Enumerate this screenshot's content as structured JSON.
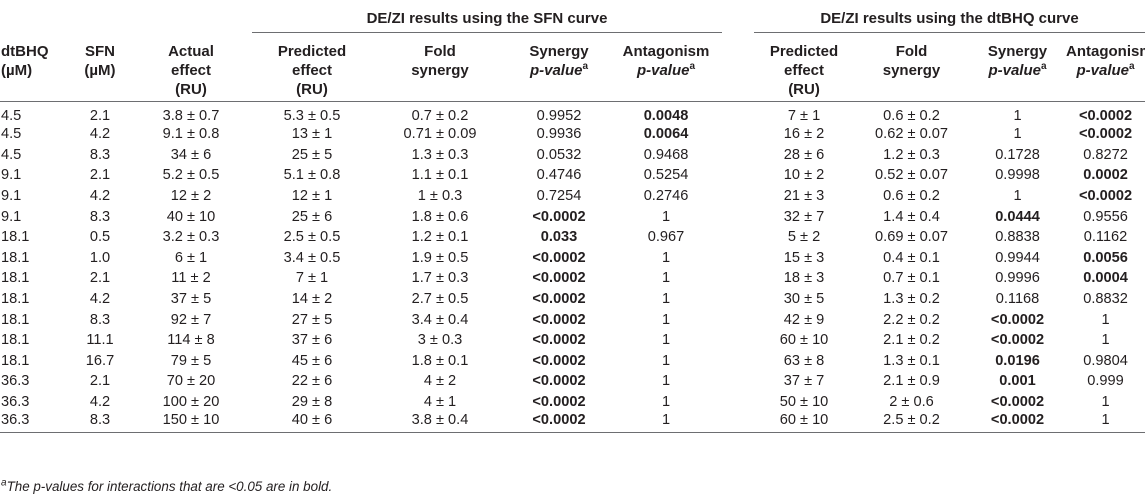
{
  "group_headers": {
    "sfn": "DE/ZI results using the SFN curve",
    "dtbhq": "DE/ZI results using the dtBHQ curve"
  },
  "col_headers": {
    "dtbhq": [
      "dtBHQ",
      "(µM)"
    ],
    "sfn": [
      "SFN",
      "(µM)"
    ],
    "actual": [
      "Actual",
      "effect",
      "(RU)"
    ],
    "predicted": [
      "Predicted",
      "effect",
      "(RU)"
    ],
    "fold": [
      "Fold",
      "synergy"
    ],
    "synergy": [
      "Synergy",
      "p-value",
      "a"
    ],
    "antagonism": [
      "Antagonism",
      "p-value",
      "a"
    ]
  },
  "rows": [
    {
      "dtbhq": "4.5",
      "sfn": "2.1",
      "actual": "3.8 ± 0.7",
      "pred1": "5.3 ± 0.5",
      "fold1": "0.7 ± 0.2",
      "syn1": "0.9952",
      "ant1": "0.0048",
      "pred2": "7 ± 1",
      "fold2": "0.6 ± 0.2",
      "syn2": "1",
      "ant2": "<0.0002",
      "bold": [
        "ant1",
        "ant2"
      ]
    },
    {
      "dtbhq": "4.5",
      "sfn": "4.2",
      "actual": "9.1 ± 0.8",
      "pred1": "13 ± 1",
      "fold1": "0.71 ± 0.09",
      "syn1": "0.9936",
      "ant1": "0.0064",
      "pred2": "16 ± 2",
      "fold2": "0.62 ± 0.07",
      "syn2": "1",
      "ant2": "<0.0002",
      "bold": [
        "ant1",
        "ant2"
      ]
    },
    {
      "dtbhq": "4.5",
      "sfn": "8.3",
      "actual": "34 ± 6",
      "pred1": "25 ± 5",
      "fold1": "1.3 ± 0.3",
      "syn1": "0.0532",
      "ant1": "0.9468",
      "pred2": "28 ± 6",
      "fold2": "1.2 ± 0.3",
      "syn2": "0.1728",
      "ant2": "0.8272",
      "bold": []
    },
    {
      "dtbhq": "9.1",
      "sfn": "2.1",
      "actual": "5.2 ± 0.5",
      "pred1": "5.1 ± 0.8",
      "fold1": "1.1 ± 0.1",
      "syn1": "0.4746",
      "ant1": "0.5254",
      "pred2": "10 ± 2",
      "fold2": "0.52 ± 0.07",
      "syn2": "0.9998",
      "ant2": "0.0002",
      "bold": [
        "ant2"
      ]
    },
    {
      "dtbhq": "9.1",
      "sfn": "4.2",
      "actual": "12 ± 2",
      "pred1": "12 ± 1",
      "fold1": "1 ± 0.3",
      "syn1": "0.7254",
      "ant1": "0.2746",
      "pred2": "21 ± 3",
      "fold2": "0.6 ± 0.2",
      "syn2": "1",
      "ant2": "<0.0002",
      "bold": [
        "ant2"
      ]
    },
    {
      "dtbhq": "9.1",
      "sfn": "8.3",
      "actual": "40 ± 10",
      "pred1": "25 ± 6",
      "fold1": "1.8 ± 0.6",
      "syn1": "<0.0002",
      "ant1": "1",
      "pred2": "32 ± 7",
      "fold2": "1.4 ± 0.4",
      "syn2": "0.0444",
      "ant2": "0.9556",
      "bold": [
        "syn1",
        "syn2"
      ]
    },
    {
      "dtbhq": "18.1",
      "sfn": "0.5",
      "actual": "3.2 ± 0.3",
      "pred1": "2.5 ± 0.5",
      "fold1": "1.2 ± 0.1",
      "syn1": "0.033",
      "ant1": "0.967",
      "pred2": "5 ± 2",
      "fold2": "0.69 ± 0.07",
      "syn2": "0.8838",
      "ant2": "0.1162",
      "bold": [
        "syn1"
      ]
    },
    {
      "dtbhq": "18.1",
      "sfn": "1.0",
      "actual": "6 ± 1",
      "pred1": "3.4 ± 0.5",
      "fold1": "1.9 ± 0.5",
      "syn1": "<0.0002",
      "ant1": "1",
      "pred2": "15 ± 3",
      "fold2": "0.4 ± 0.1",
      "syn2": "0.9944",
      "ant2": "0.0056",
      "bold": [
        "syn1",
        "ant2"
      ]
    },
    {
      "dtbhq": "18.1",
      "sfn": "2.1",
      "actual": "11 ± 2",
      "pred1": "7 ± 1",
      "fold1": "1.7 ± 0.3",
      "syn1": "<0.0002",
      "ant1": "1",
      "pred2": "18 ± 3",
      "fold2": "0.7 ± 0.1",
      "syn2": "0.9996",
      "ant2": "0.0004",
      "bold": [
        "syn1",
        "ant2"
      ]
    },
    {
      "dtbhq": "18.1",
      "sfn": "4.2",
      "actual": "37 ± 5",
      "pred1": "14 ± 2",
      "fold1": "2.7 ± 0.5",
      "syn1": "<0.0002",
      "ant1": "1",
      "pred2": "30 ± 5",
      "fold2": "1.3 ± 0.2",
      "syn2": "0.1168",
      "ant2": "0.8832",
      "bold": [
        "syn1"
      ]
    },
    {
      "dtbhq": "18.1",
      "sfn": "8.3",
      "actual": "92 ± 7",
      "pred1": "27 ± 5",
      "fold1": "3.4 ± 0.4",
      "syn1": "<0.0002",
      "ant1": "1",
      "pred2": "42 ± 9",
      "fold2": "2.2 ± 0.2",
      "syn2": "<0.0002",
      "ant2": "1",
      "bold": [
        "syn1",
        "syn2"
      ]
    },
    {
      "dtbhq": "18.1",
      "sfn": "11.1",
      "actual": "114 ± 8",
      "pred1": "37 ± 6",
      "fold1": "3 ± 0.3",
      "syn1": "<0.0002",
      "ant1": "1",
      "pred2": "60 ± 10",
      "fold2": "2.1 ± 0.2",
      "syn2": "<0.0002",
      "ant2": "1",
      "bold": [
        "syn1",
        "syn2"
      ]
    },
    {
      "dtbhq": "18.1",
      "sfn": "16.7",
      "actual": "79 ± 5",
      "pred1": "45 ± 6",
      "fold1": "1.8 ± 0.1",
      "syn1": "<0.0002",
      "ant1": "1",
      "pred2": "63 ± 8",
      "fold2": "1.3 ± 0.1",
      "syn2": "0.0196",
      "ant2": "0.9804",
      "bold": [
        "syn1",
        "syn2"
      ]
    },
    {
      "dtbhq": "36.3",
      "sfn": "2.1",
      "actual": "70 ± 20",
      "pred1": "22 ± 6",
      "fold1": "4 ± 2",
      "syn1": "<0.0002",
      "ant1": "1",
      "pred2": "37 ± 7",
      "fold2": "2.1 ± 0.9",
      "syn2": "0.001",
      "ant2": "0.999",
      "bold": [
        "syn1",
        "syn2"
      ]
    },
    {
      "dtbhq": "36.3",
      "sfn": "4.2",
      "actual": "100 ± 20",
      "pred1": "29 ± 8",
      "fold1": "4 ± 1",
      "syn1": "<0.0002",
      "ant1": "1",
      "pred2": "50 ± 10",
      "fold2": "2 ± 0.6",
      "syn2": "<0.0002",
      "ant2": "1",
      "bold": [
        "syn1",
        "syn2"
      ]
    },
    {
      "dtbhq": "36.3",
      "sfn": "8.3",
      "actual": "150 ± 10",
      "pred1": "40 ± 6",
      "fold1": "3.8 ± 0.4",
      "syn1": "<0.0002",
      "ant1": "1",
      "pred2": "60 ± 10",
      "fold2": "2.5 ± 0.2",
      "syn2": "<0.0002",
      "ant2": "1",
      "bold": [
        "syn1",
        "syn2"
      ]
    }
  ],
  "footnote": {
    "mark": "a",
    "text": "The p-values for interactions that are <0.05 are in bold."
  }
}
